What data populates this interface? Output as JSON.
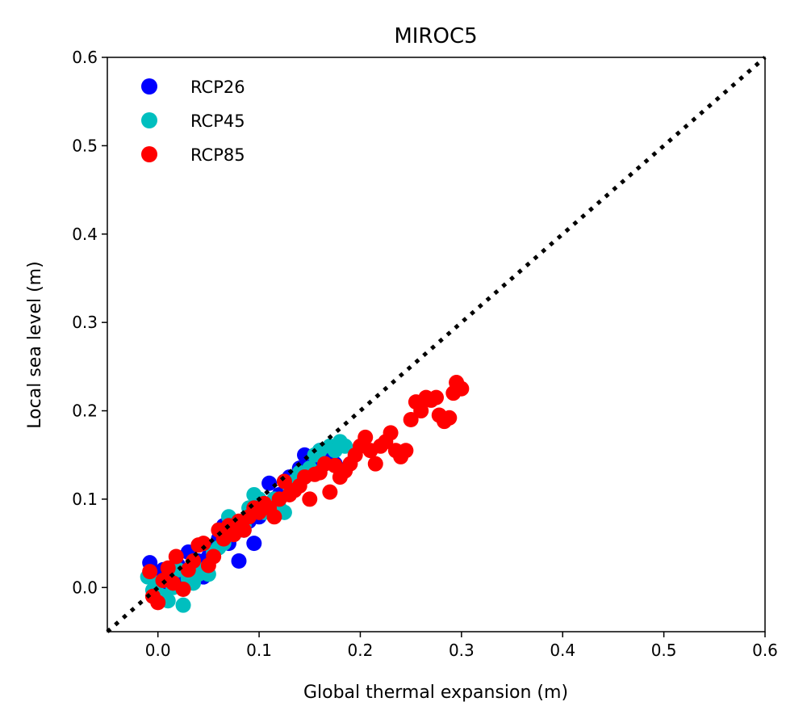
{
  "chart_data": {
    "type": "scatter",
    "title": "MIROC5",
    "xlabel": "Global thermal expansion (m)",
    "ylabel": "Local sea level (m)",
    "xlim": [
      -0.05,
      0.6
    ],
    "ylim": [
      -0.05,
      0.6
    ],
    "xticks": [
      "0.0",
      "0.1",
      "0.2",
      "0.3",
      "0.4",
      "0.5",
      "0.6"
    ],
    "xtick_values": [
      0.0,
      0.1,
      0.2,
      0.3,
      0.4,
      0.5,
      0.6
    ],
    "yticks": [
      "0.0",
      "0.1",
      "0.2",
      "0.3",
      "0.4",
      "0.5",
      "0.6"
    ],
    "ytick_values": [
      0.0,
      0.1,
      0.2,
      0.3,
      0.4,
      0.5,
      0.6
    ],
    "grid": false,
    "legend_position": "top-left",
    "reference_line": {
      "style": "dotted",
      "color": "#000000",
      "from": [
        -0.05,
        -0.05
      ],
      "to": [
        0.6,
        0.6
      ]
    },
    "series": [
      {
        "name": "RCP26",
        "color": "#0000ff",
        "points": [
          [
            -0.008,
            0.028
          ],
          [
            0.0,
            0.01
          ],
          [
            0.005,
            0.02
          ],
          [
            0.01,
            0.0
          ],
          [
            0.015,
            0.015
          ],
          [
            0.02,
            0.025
          ],
          [
            0.025,
            0.01
          ],
          [
            0.03,
            0.04
          ],
          [
            0.035,
            0.02
          ],
          [
            0.04,
            0.03
          ],
          [
            0.045,
            0.012
          ],
          [
            0.05,
            0.035
          ],
          [
            0.055,
            0.045
          ],
          [
            0.06,
            0.055
          ],
          [
            0.065,
            0.07
          ],
          [
            0.07,
            0.05
          ],
          [
            0.075,
            0.06
          ],
          [
            0.08,
            0.03
          ],
          [
            0.085,
            0.065
          ],
          [
            0.09,
            0.075
          ],
          [
            0.095,
            0.05
          ],
          [
            0.1,
            0.08
          ],
          [
            0.105,
            0.095
          ],
          [
            0.11,
            0.118
          ],
          [
            0.115,
            0.1
          ],
          [
            0.12,
            0.105
          ],
          [
            0.125,
            0.12
          ],
          [
            0.13,
            0.125
          ],
          [
            0.14,
            0.135
          ],
          [
            0.145,
            0.15
          ],
          [
            0.15,
            0.14
          ],
          [
            0.155,
            0.145
          ],
          [
            0.16,
            0.155
          ],
          [
            0.17,
            0.15
          ],
          [
            0.175,
            0.14
          ]
        ]
      },
      {
        "name": "RCP45",
        "color": "#00bfbf",
        "points": [
          [
            -0.01,
            0.012
          ],
          [
            -0.005,
            -0.003
          ],
          [
            0.0,
            0.005
          ],
          [
            0.005,
            -0.01
          ],
          [
            0.01,
            -0.015
          ],
          [
            0.015,
            0.0
          ],
          [
            0.02,
            0.02
          ],
          [
            0.025,
            -0.02
          ],
          [
            0.03,
            0.01
          ],
          [
            0.035,
            0.005
          ],
          [
            0.04,
            0.015
          ],
          [
            0.045,
            0.02
          ],
          [
            0.05,
            0.015
          ],
          [
            0.055,
            0.04
          ],
          [
            0.06,
            0.045
          ],
          [
            0.065,
            0.05
          ],
          [
            0.07,
            0.08
          ],
          [
            0.075,
            0.06
          ],
          [
            0.08,
            0.065
          ],
          [
            0.085,
            0.07
          ],
          [
            0.09,
            0.09
          ],
          [
            0.095,
            0.105
          ],
          [
            0.1,
            0.1
          ],
          [
            0.105,
            0.085
          ],
          [
            0.11,
            0.095
          ],
          [
            0.115,
            0.1
          ],
          [
            0.12,
            0.09
          ],
          [
            0.125,
            0.085
          ],
          [
            0.13,
            0.115
          ],
          [
            0.135,
            0.12
          ],
          [
            0.14,
            0.13
          ],
          [
            0.145,
            0.125
          ],
          [
            0.15,
            0.135
          ],
          [
            0.155,
            0.15
          ],
          [
            0.16,
            0.155
          ],
          [
            0.165,
            0.14
          ],
          [
            0.17,
            0.16
          ],
          [
            0.175,
            0.155
          ],
          [
            0.18,
            0.165
          ],
          [
            0.185,
            0.16
          ]
        ]
      },
      {
        "name": "RCP85",
        "color": "#ff0000",
        "points": [
          [
            -0.008,
            0.018
          ],
          [
            -0.005,
            -0.01
          ],
          [
            0.0,
            -0.017
          ],
          [
            0.005,
            0.008
          ],
          [
            0.01,
            0.022
          ],
          [
            0.015,
            0.005
          ],
          [
            0.018,
            0.035
          ],
          [
            0.025,
            -0.002
          ],
          [
            0.03,
            0.02
          ],
          [
            0.035,
            0.03
          ],
          [
            0.04,
            0.048
          ],
          [
            0.045,
            0.05
          ],
          [
            0.05,
            0.025
          ],
          [
            0.055,
            0.035
          ],
          [
            0.06,
            0.065
          ],
          [
            0.065,
            0.055
          ],
          [
            0.07,
            0.07
          ],
          [
            0.075,
            0.06
          ],
          [
            0.08,
            0.075
          ],
          [
            0.085,
            0.065
          ],
          [
            0.09,
            0.08
          ],
          [
            0.095,
            0.09
          ],
          [
            0.1,
            0.085
          ],
          [
            0.105,
            0.095
          ],
          [
            0.11,
            0.09
          ],
          [
            0.115,
            0.08
          ],
          [
            0.12,
            0.1
          ],
          [
            0.125,
            0.12
          ],
          [
            0.13,
            0.105
          ],
          [
            0.135,
            0.11
          ],
          [
            0.14,
            0.115
          ],
          [
            0.145,
            0.125
          ],
          [
            0.15,
            0.1
          ],
          [
            0.155,
            0.128
          ],
          [
            0.16,
            0.13
          ],
          [
            0.165,
            0.14
          ],
          [
            0.17,
            0.108
          ],
          [
            0.175,
            0.138
          ],
          [
            0.18,
            0.125
          ],
          [
            0.185,
            0.132
          ],
          [
            0.19,
            0.14
          ],
          [
            0.195,
            0.15
          ],
          [
            0.2,
            0.16
          ],
          [
            0.205,
            0.17
          ],
          [
            0.21,
            0.155
          ],
          [
            0.215,
            0.14
          ],
          [
            0.22,
            0.16
          ],
          [
            0.225,
            0.165
          ],
          [
            0.23,
            0.175
          ],
          [
            0.235,
            0.155
          ],
          [
            0.24,
            0.148
          ],
          [
            0.245,
            0.155
          ],
          [
            0.25,
            0.19
          ],
          [
            0.255,
            0.21
          ],
          [
            0.26,
            0.2
          ],
          [
            0.265,
            0.215
          ],
          [
            0.27,
            0.212
          ],
          [
            0.275,
            0.215
          ],
          [
            0.278,
            0.195
          ],
          [
            0.283,
            0.188
          ],
          [
            0.288,
            0.192
          ],
          [
            0.292,
            0.22
          ],
          [
            0.295,
            0.232
          ],
          [
            0.3,
            0.225
          ]
        ]
      }
    ]
  }
}
